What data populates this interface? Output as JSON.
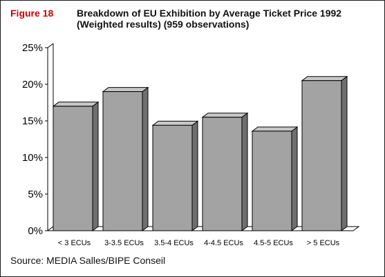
{
  "figure_label": "Figure 18",
  "title_line1": "Breakdown of EU Exhibition by Average Ticket Price 1992",
  "title_line2": "(Weighted results) (959 observations)",
  "source": "Source: MEDIA Salles/BIPE Conseil",
  "colors": {
    "figure_label": "#cc0000",
    "bar_front": "#a3a3a3",
    "bar_top": "#c7c7c7",
    "bar_side": "#6f6f6f"
  },
  "chart_data": {
    "type": "bar",
    "title": "Breakdown of EU Exhibition by Average Ticket Price 1992",
    "subtitle": "(Weighted results) (959 observations)",
    "categories": [
      "< 3 ECUs",
      "3-3.5 ECUs",
      "3.5-4 ECUs",
      "4-4.5 ECUs",
      "4.5-5 ECUs",
      "> 5 ECUs"
    ],
    "values": [
      17,
      19,
      14.4,
      15.5,
      13.6,
      20.5
    ],
    "unit": "%",
    "ylim": [
      0,
      25
    ],
    "yticks": [
      "0%",
      "5%",
      "10%",
      "15%",
      "20%",
      "25%"
    ],
    "grid": false,
    "style": "3d"
  }
}
